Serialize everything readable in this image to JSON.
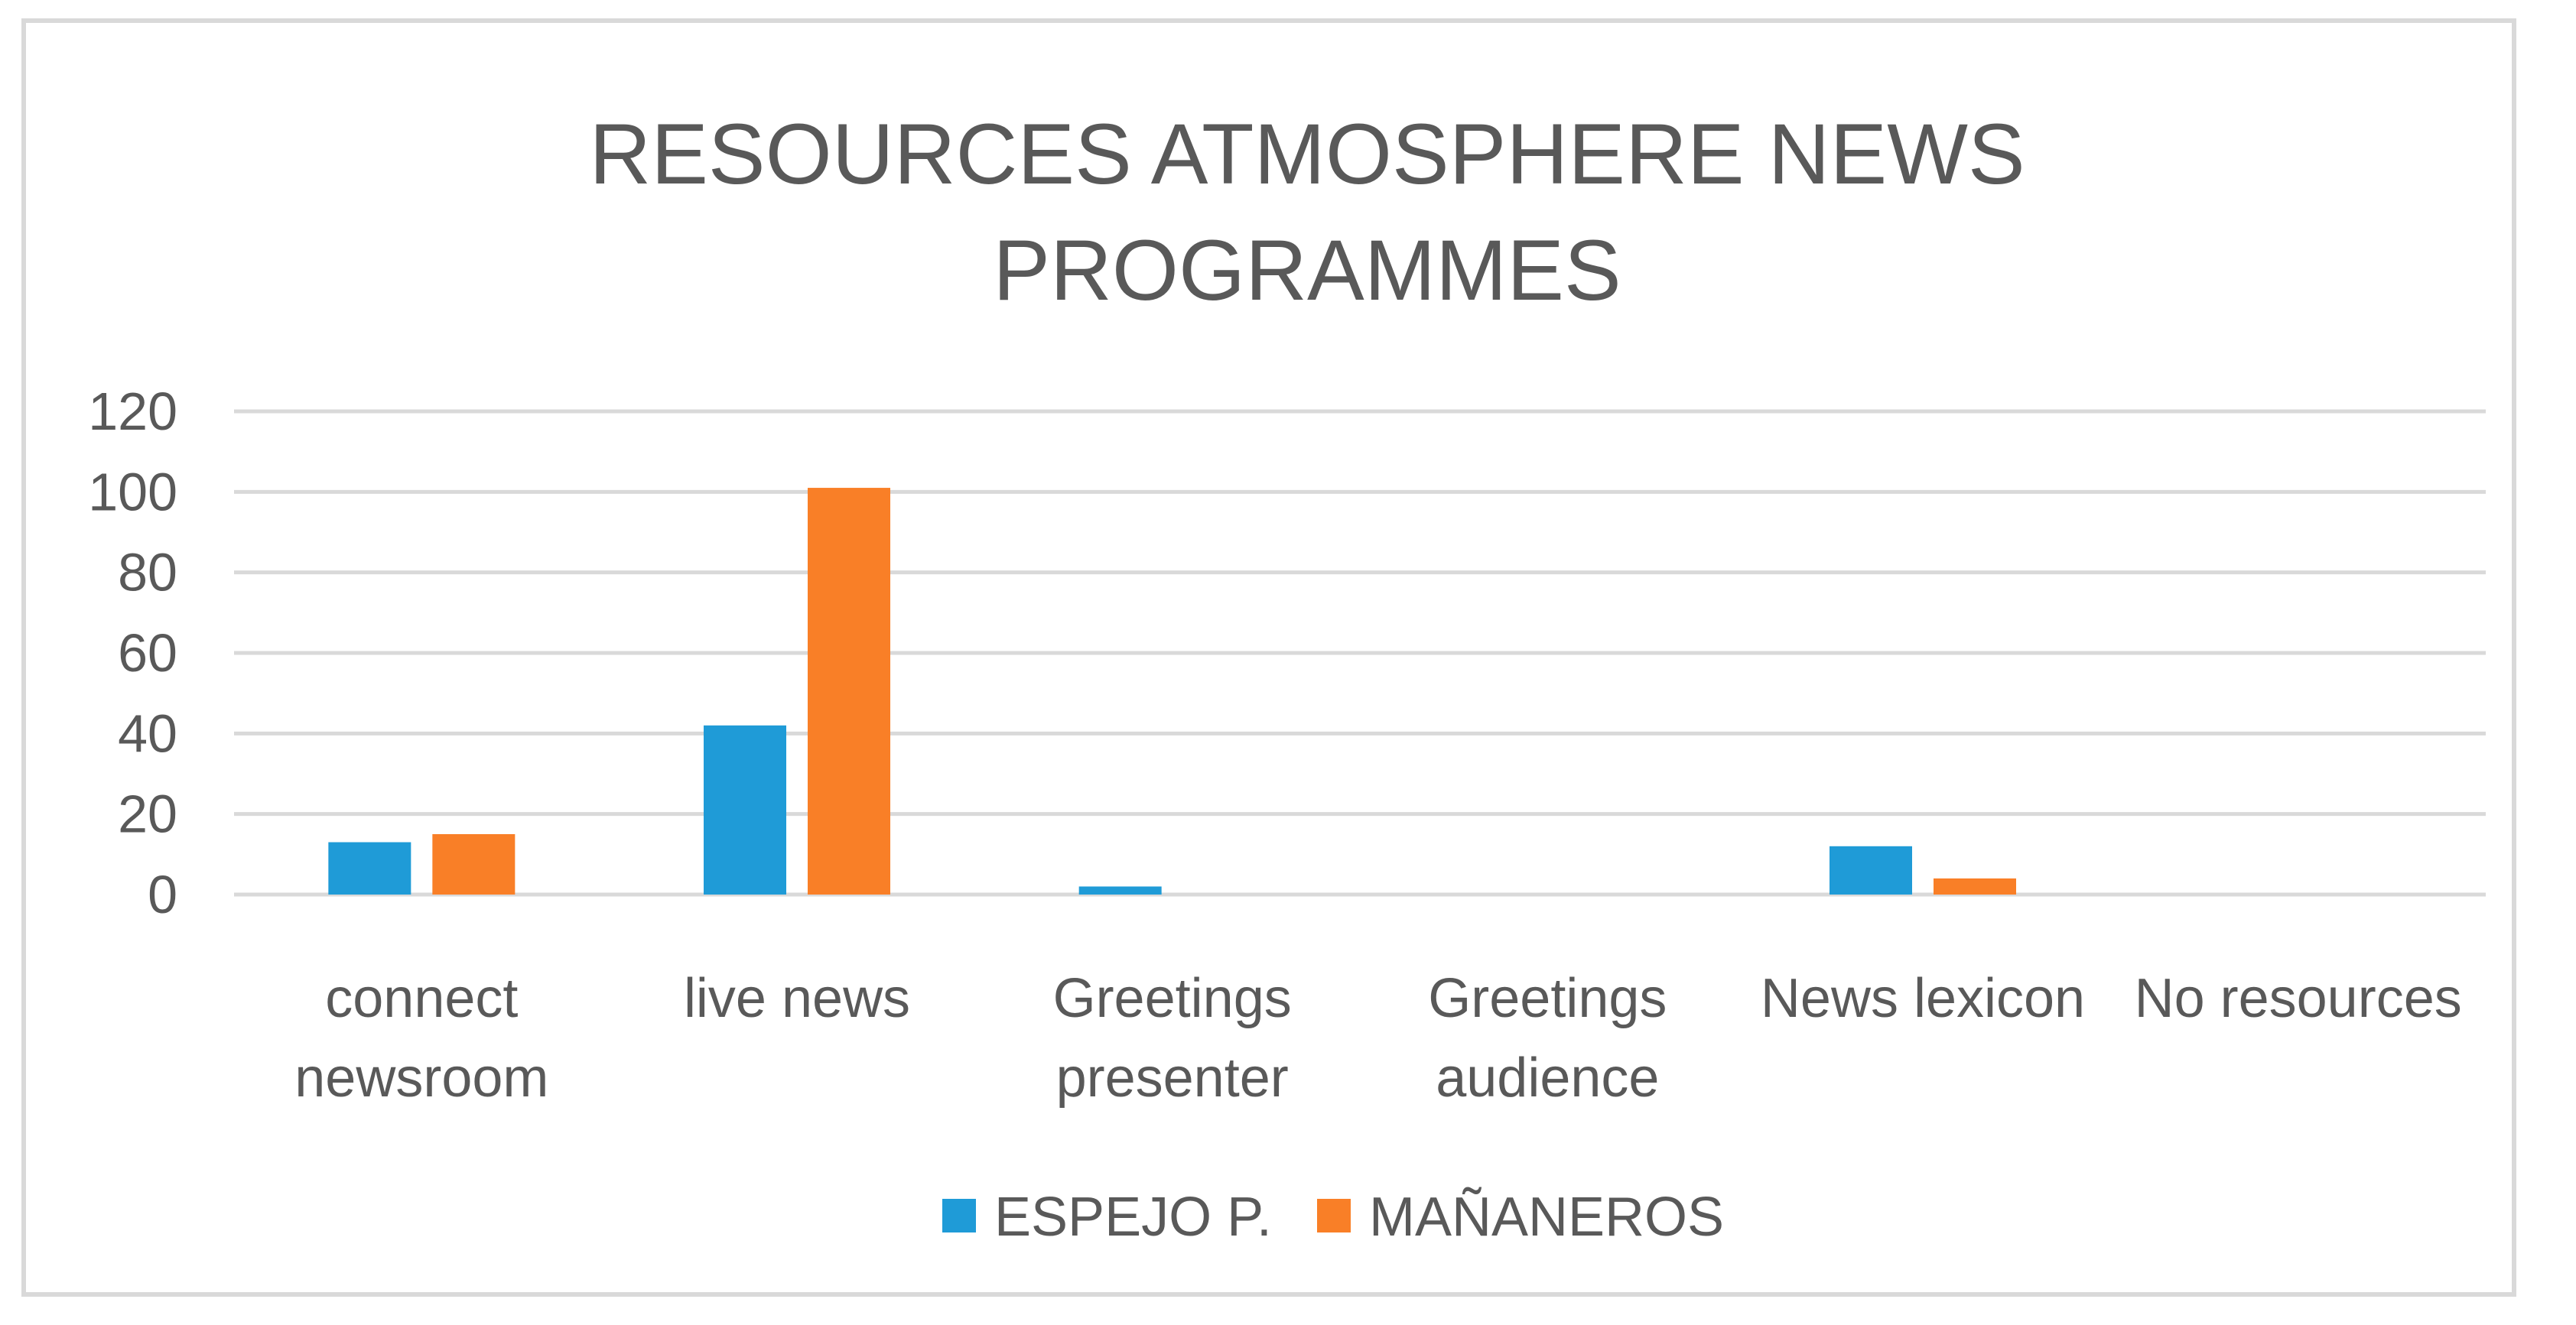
{
  "chart_data": {
    "type": "bar",
    "title": "RESOURCES ATMOSPHERE NEWS PROGRAMMES",
    "title_lines": [
      "RESOURCES ATMOSPHERE NEWS",
      "PROGRAMMES"
    ],
    "categories": [
      [
        "connect",
        "newsroom"
      ],
      [
        "live news"
      ],
      [
        "Greetings",
        "presenter"
      ],
      [
        "Greetings",
        "audience"
      ],
      [
        "News lexicon"
      ],
      [
        "No resources"
      ]
    ],
    "series": [
      {
        "name": "ESPEJO P.",
        "color": "#1f9bd7",
        "values": [
          13,
          42,
          2,
          0,
          12,
          0
        ]
      },
      {
        "name": "MAÑANEROS",
        "color": "#f97f27",
        "values": [
          15,
          101,
          0,
          0,
          4,
          0
        ]
      }
    ],
    "ylim": [
      0,
      120
    ],
    "yticks": [
      0,
      20,
      40,
      60,
      80,
      100,
      120
    ],
    "grid": true,
    "legend_position": "bottom"
  }
}
